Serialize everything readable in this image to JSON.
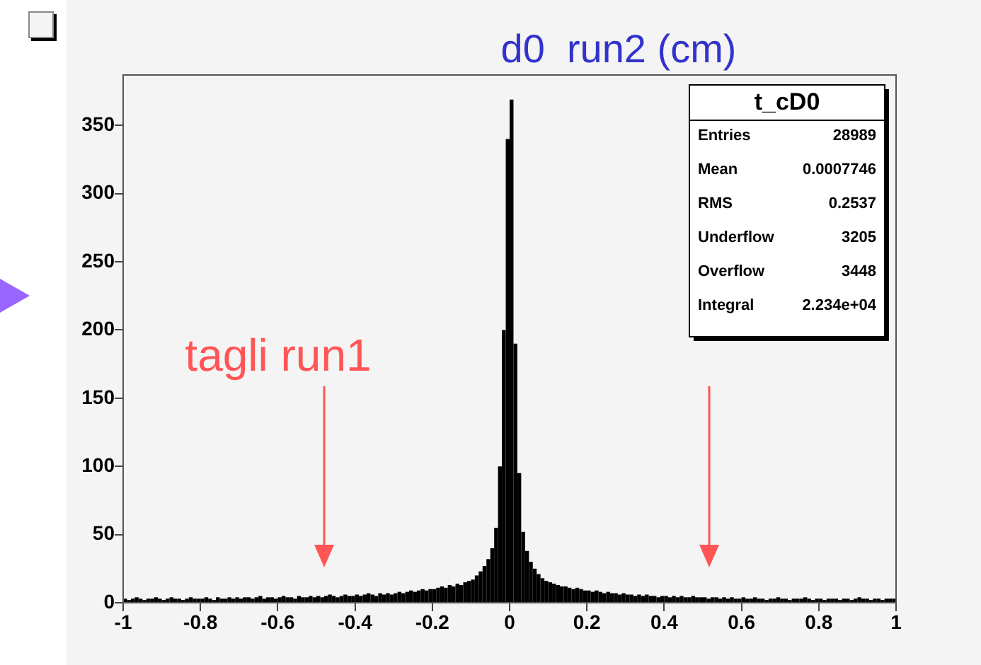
{
  "chart_data": {
    "type": "histogram",
    "title": "d0  run2 (cm)",
    "bins": [
      -1,
      -0.99,
      -0.98,
      -0.97,
      -0.96,
      -0.95,
      -0.94,
      -0.93,
      -0.92,
      -0.91,
      -0.9,
      -0.89,
      -0.88,
      -0.87,
      -0.86,
      -0.85,
      -0.84,
      -0.83,
      -0.82,
      -0.81,
      -0.8,
      -0.79,
      -0.78,
      -0.77,
      -0.76,
      -0.75,
      -0.74,
      -0.73,
      -0.72,
      -0.71,
      -0.7,
      -0.69,
      -0.68,
      -0.67,
      -0.66,
      -0.65,
      -0.64,
      -0.63,
      -0.62,
      -0.61,
      -0.6,
      -0.59,
      -0.58,
      -0.57,
      -0.56,
      -0.55,
      -0.54,
      -0.53,
      -0.52,
      -0.51,
      -0.5,
      -0.49,
      -0.48,
      -0.47,
      -0.46,
      -0.45,
      -0.44,
      -0.43,
      -0.42,
      -0.41,
      -0.4,
      -0.39,
      -0.38,
      -0.37,
      -0.36,
      -0.35,
      -0.34,
      -0.33,
      -0.32,
      -0.31,
      -0.3,
      -0.29,
      -0.28,
      -0.27,
      -0.26,
      -0.25,
      -0.24,
      -0.23,
      -0.22,
      -0.21,
      -0.2,
      -0.19,
      -0.18,
      -0.17,
      -0.16,
      -0.15,
      -0.14,
      -0.13,
      -0.12,
      -0.11,
      -0.1,
      -0.09,
      -0.08,
      -0.07,
      -0.06,
      -0.05,
      -0.04,
      -0.03,
      -0.02,
      -0.01,
      0,
      0.01,
      0.02,
      0.03,
      0.04,
      0.05,
      0.06,
      0.07,
      0.08,
      0.09,
      0.1,
      0.11,
      0.12,
      0.13,
      0.14,
      0.15,
      0.16,
      0.17,
      0.18,
      0.19,
      0.2,
      0.21,
      0.22,
      0.23,
      0.24,
      0.25,
      0.26,
      0.27,
      0.28,
      0.29,
      0.3,
      0.31,
      0.32,
      0.33,
      0.34,
      0.35,
      0.36,
      0.37,
      0.38,
      0.39,
      0.4,
      0.41,
      0.42,
      0.43,
      0.44,
      0.45,
      0.46,
      0.47,
      0.48,
      0.49,
      0.5,
      0.51,
      0.52,
      0.53,
      0.54,
      0.55,
      0.56,
      0.57,
      0.58,
      0.59,
      0.6,
      0.61,
      0.62,
      0.63,
      0.64,
      0.65,
      0.66,
      0.67,
      0.68,
      0.69,
      0.7,
      0.71,
      0.72,
      0.73,
      0.74,
      0.75,
      0.76,
      0.77,
      0.78,
      0.79,
      0.8,
      0.81,
      0.82,
      0.83,
      0.84,
      0.85,
      0.86,
      0.87,
      0.88,
      0.89,
      0.9,
      0.91,
      0.92,
      0.93,
      0.94,
      0.95,
      0.96,
      0.97,
      0.98,
      0.99,
      1
    ],
    "values": [
      3,
      2,
      3,
      4,
      3,
      2,
      3,
      3,
      4,
      3,
      2,
      3,
      4,
      3,
      3,
      2,
      3,
      4,
      3,
      3,
      3,
      4,
      3,
      2,
      4,
      3,
      3,
      4,
      3,
      4,
      3,
      4,
      4,
      3,
      4,
      5,
      3,
      4,
      4,
      3,
      4,
      5,
      4,
      4,
      3,
      5,
      4,
      4,
      5,
      4,
      5,
      4,
      5,
      6,
      5,
      4,
      5,
      6,
      5,
      5,
      6,
      5,
      6,
      7,
      6,
      5,
      7,
      6,
      7,
      6,
      7,
      8,
      7,
      8,
      9,
      8,
      9,
      10,
      9,
      10,
      10,
      11,
      12,
      11,
      13,
      12,
      14,
      13,
      15,
      16,
      17,
      20,
      23,
      27,
      32,
      40,
      55,
      100,
      200,
      340,
      369,
      190,
      95,
      52,
      38,
      30,
      25,
      21,
      18,
      16,
      15,
      14,
      13,
      12,
      12,
      11,
      10,
      11,
      10,
      9,
      9,
      8,
      9,
      8,
      7,
      8,
      7,
      7,
      6,
      7,
      6,
      6,
      5,
      6,
      5,
      6,
      5,
      5,
      4,
      5,
      5,
      4,
      5,
      4,
      5,
      4,
      4,
      5,
      4,
      4,
      4,
      3,
      4,
      4,
      3,
      4,
      3,
      4,
      3,
      3,
      4,
      3,
      3,
      4,
      3,
      3,
      2,
      3,
      3,
      4,
      3,
      3,
      2,
      3,
      3,
      3,
      4,
      3,
      2,
      3,
      3,
      2,
      3,
      3,
      3,
      2,
      3,
      3,
      2,
      3,
      4,
      3,
      3,
      2,
      3,
      3,
      2,
      3,
      3,
      3
    ],
    "color": "#000000",
    "xlim": [
      -1,
      1
    ],
    "xticks": [
      -1,
      -0.8,
      -0.6,
      -0.4,
      -0.2,
      0,
      0.2,
      0.4,
      0.6,
      0.8,
      1
    ],
    "ylim": [
      0,
      387
    ],
    "yticks": [
      0,
      50,
      100,
      150,
      200,
      250,
      300,
      350
    ],
    "grid": false,
    "legend": false,
    "annotations": [
      "tagli run1",
      "t_cD0",
      "Entries",
      "28989",
      "Mean",
      "0.0007746",
      "RMS",
      "0.2537",
      "Underflow",
      "3205",
      "Overflow",
      "3448",
      "Integral",
      "2.234e+04"
    ]
  }
}
